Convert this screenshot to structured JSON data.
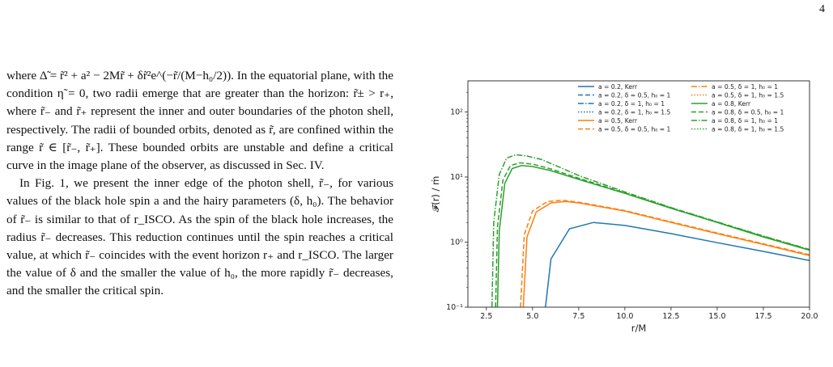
{
  "page": {
    "number": "4"
  },
  "body": {
    "paragraphs": [
      {
        "indent": false,
        "lines": [
          "where Δ̃ = r̃² + a² − 2Mr̃ + δr̃²e^(−r̃/(M−h₀/2)). In the",
          "equatorial plane, with the condition η̃ = 0, two radii",
          "emerge that are greater than the horizon: r̃± > r₊, where",
          "r̃₋ and r̃₊ represent the inner and outer boundaries of the",
          "photon shell, respectively. The radii of bounded orbits,",
          "denoted as r̃, are confined within the range r̃ ∈ [r̃₋, r̃₊].",
          "These bounded orbits are unstable and define a critical",
          "curve in the image plane of the observer, as discussed in",
          "Sec. IV."
        ]
      },
      {
        "indent": true,
        "lines": [
          "In Fig. 1, we present the inner edge of the photon shell,",
          "r̃₋, for various values of the black hole spin a and the",
          "hairy parameters (δ, h₀). The behavior of r̃₋ is similar to",
          "that of r_ISCO. As the spin of the black hole increases, the",
          "radius r̃₋ decreases. This reduction continues until the",
          "spin reaches a critical value, at which r̃₋ coincides with",
          "the event horizon r₊ and r_ISCO. The larger the value of",
          "δ and the smaller the value of h₀, the more rapidly r̃₋",
          "decreases, and the smaller the critical spin."
        ]
      }
    ]
  },
  "chart_data": {
    "type": "line",
    "xlabel": "r/M",
    "ylabel": "𝓕(r) / ṁ",
    "xlim": [
      1.5,
      20.0
    ],
    "ylim": [
      0.1,
      300
    ],
    "yscale": "log",
    "xticks": [
      2.5,
      5.0,
      7.5,
      10.0,
      12.5,
      15.0,
      17.5,
      20.0
    ],
    "xtick_labels": [
      "2.5",
      "5.0",
      "7.5",
      "10.0",
      "12.5",
      "15.0",
      "17.5",
      "20.0"
    ],
    "yticks": [
      0.1,
      1,
      10,
      100
    ],
    "ytick_labels": [
      "10⁻¹",
      "10⁰",
      "10¹",
      "10²"
    ],
    "grid": false,
    "legend_placement": "top-right",
    "series": [
      {
        "name": "a = 0.2, Kerr",
        "color": "#1f77b4",
        "dash": "solid",
        "x": [
          5.7,
          6.0,
          7.0,
          8.3,
          10.0,
          12.5,
          15.0,
          17.5,
          20.0
        ],
        "y": [
          0.1,
          0.55,
          1.6,
          2.0,
          1.8,
          1.35,
          0.98,
          0.72,
          0.52
        ]
      },
      {
        "name": "a = 0.2, δ = 0.5, h₀ = 1",
        "color": "#1f77b4",
        "dash": "dashed",
        "x": [],
        "y": []
      },
      {
        "name": "a = 0.2, δ = 1, h₀ = 1",
        "color": "#1f77b4",
        "dash": "dashdot",
        "x": [],
        "y": []
      },
      {
        "name": "a = 0.2, δ = 1, h₀ = 1.5",
        "color": "#1f77b4",
        "dash": "dotted",
        "x": [],
        "y": []
      },
      {
        "name": "a = 0.5, Kerr",
        "color": "#ff7f0e",
        "dash": "solid",
        "x": [
          4.5,
          4.7,
          5.2,
          6.0,
          6.8,
          7.5,
          10.0,
          12.5,
          15.0,
          17.5,
          20.0
        ],
        "y": [
          0.1,
          1.2,
          2.9,
          4.0,
          4.2,
          4.0,
          3.0,
          2.0,
          1.35,
          0.92,
          0.62
        ]
      },
      {
        "name": "a = 0.5, δ = 0.5, h₀ = 1",
        "color": "#ff7f0e",
        "dash": "dashed",
        "x": [
          4.35,
          4.55,
          5.0,
          5.8,
          6.6,
          7.5,
          10.0,
          12.5,
          15.0,
          17.5,
          20.0
        ],
        "y": [
          0.1,
          1.3,
          3.0,
          4.2,
          4.4,
          4.1,
          3.05,
          2.05,
          1.38,
          0.94,
          0.64
        ]
      },
      {
        "name": "a = 0.5, δ = 1, h₀ = 1",
        "color": "#ff7f0e",
        "dash": "dashdot",
        "x": [],
        "y": []
      },
      {
        "name": "a = 0.5, δ = 1, h₀ = 1.5",
        "color": "#ff7f0e",
        "dash": "dotted",
        "x": [],
        "y": []
      },
      {
        "name": "a = 0.8, Kerr",
        "color": "#2ca02c",
        "dash": "solid",
        "x": [
          3.1,
          3.2,
          3.5,
          3.9,
          4.4,
          5.0,
          6.0,
          7.5,
          10.0,
          12.5,
          15.0,
          17.5,
          20.0
        ],
        "y": [
          0.1,
          1.5,
          8.0,
          13.5,
          15.0,
          14.5,
          12.5,
          9.2,
          5.6,
          3.3,
          2.0,
          1.2,
          0.75
        ]
      },
      {
        "name": "a = 0.8, δ = 0.5, h₀ = 1",
        "color": "#2ca02c",
        "dash": "dashed",
        "x": [
          3.0,
          3.1,
          3.4,
          3.8,
          4.3,
          5.0,
          6.0,
          7.5,
          10.0,
          12.5,
          15.0,
          17.5,
          20.0
        ],
        "y": [
          0.1,
          1.7,
          9.0,
          15.0,
          16.5,
          15.8,
          13.3,
          9.6,
          5.7,
          3.35,
          2.02,
          1.22,
          0.76
        ]
      },
      {
        "name": "a = 0.8, δ = 1, h₀ = 1",
        "color": "#2ca02c",
        "dash": "dashdot",
        "x": [
          2.8,
          2.9,
          3.2,
          3.6,
          4.1,
          4.7,
          5.5,
          6.5,
          7.5,
          10.0,
          12.5,
          15.0,
          17.5,
          20.0
        ],
        "y": [
          0.1,
          2.0,
          11.0,
          19.5,
          22.0,
          21.0,
          18.5,
          14.0,
          10.5,
          5.9,
          3.4,
          2.05,
          1.24,
          0.77
        ]
      },
      {
        "name": "a = 0.8, δ = 1, h₀ = 1.5",
        "color": "#2ca02c",
        "dash": "dotted",
        "x": [],
        "y": []
      }
    ]
  }
}
